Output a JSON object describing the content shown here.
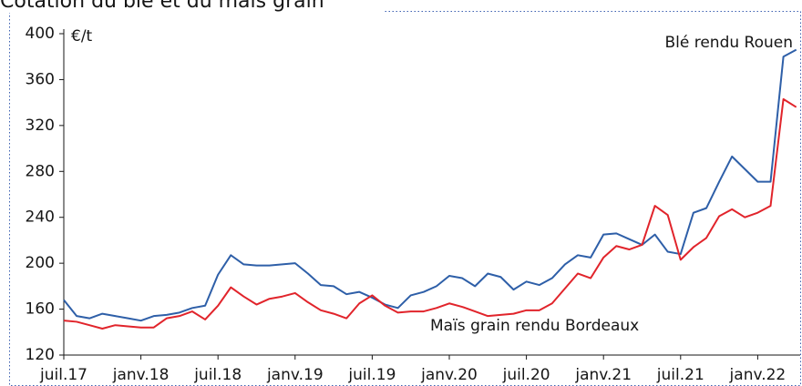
{
  "chart_data": {
    "type": "line",
    "title": "Cotation du blé et du maïs grain",
    "y_unit": "€/t",
    "categories": [
      "juil.17",
      null,
      null,
      null,
      null,
      null,
      "janv.18",
      null,
      null,
      null,
      null,
      null,
      "juil.18",
      null,
      null,
      null,
      null,
      null,
      "janv.19",
      null,
      null,
      null,
      null,
      null,
      "juil.19",
      null,
      null,
      null,
      null,
      null,
      "janv.20",
      null,
      null,
      null,
      null,
      null,
      "juil.20",
      null,
      null,
      null,
      null,
      null,
      "janv.21",
      null,
      null,
      null,
      null,
      null,
      "juil.21",
      null,
      null,
      null,
      null,
      null,
      "janv.22",
      null,
      null,
      null
    ],
    "series": [
      {
        "name": "Blé rendu Rouen",
        "color": "#2e5fa8",
        "values": [
          168,
          154,
          152,
          156,
          154,
          152,
          150,
          154,
          155,
          157,
          161,
          163,
          190,
          207,
          199,
          198,
          198,
          199,
          200,
          191,
          181,
          180,
          173,
          175,
          170,
          164,
          161,
          172,
          175,
          180,
          189,
          187,
          180,
          191,
          188,
          177,
          184,
          181,
          187,
          199,
          207,
          205,
          225,
          226,
          221,
          216,
          225,
          210,
          208,
          244,
          248,
          271,
          293,
          282,
          271,
          271,
          380,
          386
        ]
      },
      {
        "name": "Maïs grain rendu Bordeaux",
        "color": "#e1242b",
        "values": [
          150,
          149,
          146,
          143,
          146,
          145,
          144,
          144,
          152,
          154,
          158,
          151,
          163,
          179,
          171,
          164,
          169,
          171,
          174,
          166,
          159,
          156,
          152,
          165,
          172,
          163,
          157,
          158,
          158,
          161,
          165,
          162,
          158,
          154,
          155,
          156,
          159,
          159,
          165,
          178,
          191,
          187,
          205,
          215,
          212,
          216,
          250,
          242,
          203,
          214,
          222,
          241,
          247,
          240,
          244,
          250,
          343,
          336
        ]
      }
    ],
    "ylim": [
      120,
      400
    ],
    "yticks": [
      120,
      160,
      200,
      240,
      280,
      320,
      360,
      400
    ],
    "grid": false
  }
}
